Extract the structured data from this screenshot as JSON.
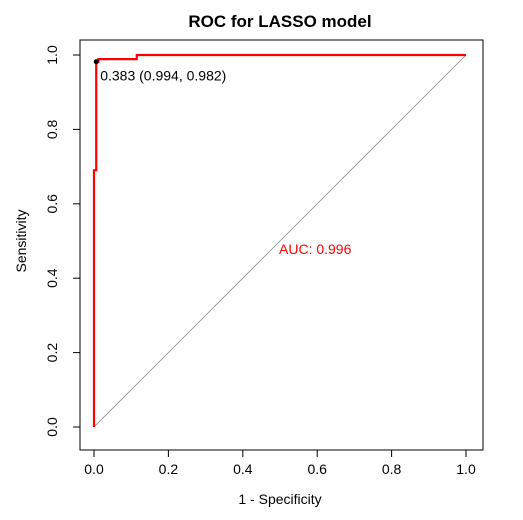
{
  "chart_data": {
    "type": "line",
    "title": "ROC for LASSO model",
    "xlabel": "1 - Specificity",
    "ylabel": "Sensitivity",
    "xlim": [
      0.0,
      1.0
    ],
    "ylim": [
      0.0,
      1.0
    ],
    "xticks": [
      "0.0",
      "0.2",
      "0.4",
      "0.6",
      "0.8",
      "1.0"
    ],
    "yticks": [
      "0.0",
      "0.2",
      "0.4",
      "0.6",
      "0.8",
      "1.0"
    ],
    "grid": false,
    "legend": "none",
    "series": [
      {
        "color": "#ff0000",
        "x": [
          0.0,
          0.0,
          0.006,
          0.006,
          0.012,
          0.012,
          0.115,
          0.115,
          1.0
        ],
        "y": [
          0.0,
          0.69,
          0.69,
          0.982,
          0.982,
          0.989,
          0.989,
          1.0,
          1.0
        ]
      }
    ],
    "reference_line": {
      "color": "#a0a0a0",
      "x": [
        0.0,
        1.0
      ],
      "y": [
        0.0,
        1.0
      ]
    },
    "annotations": [
      {
        "text": "0.383 (0.994, 0.982)",
        "x": 0.006,
        "y": 0.982,
        "color": "#000000",
        "marker": true
      },
      {
        "text": "AUC: 0.996",
        "x": 0.5,
        "y": 0.478,
        "color": "#ff0000",
        "marker": false
      }
    ]
  }
}
